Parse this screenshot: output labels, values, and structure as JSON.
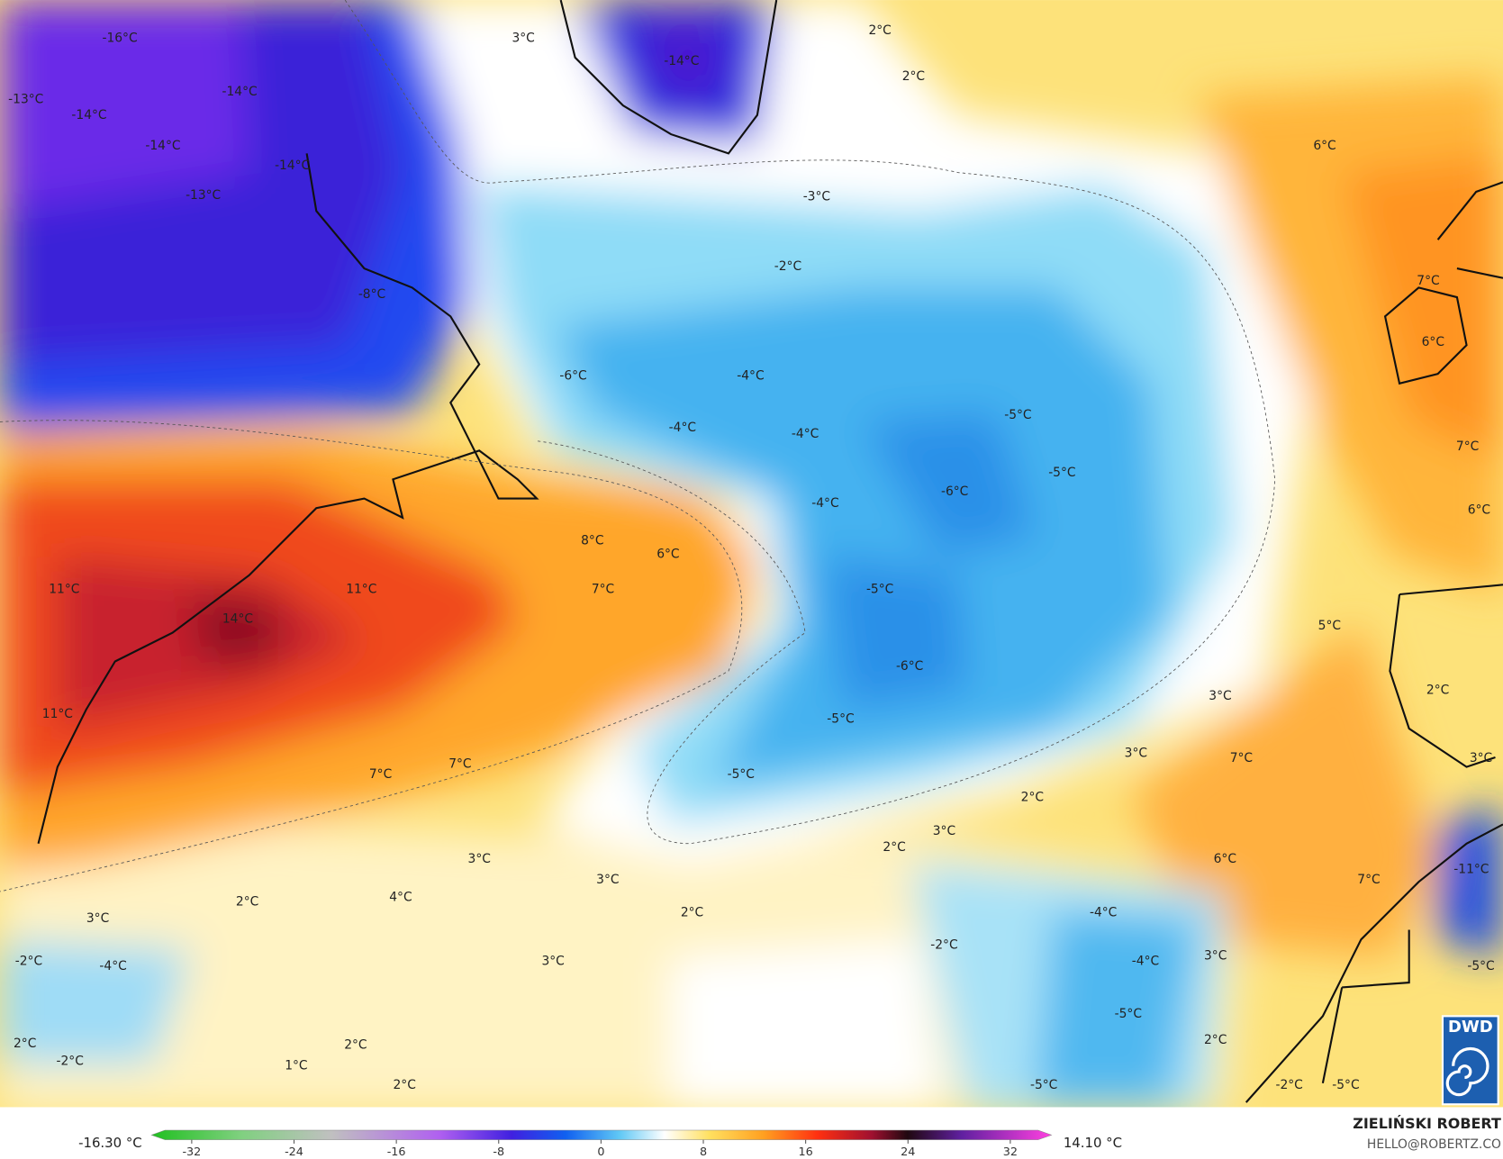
{
  "map": {
    "labels": [
      "-16°C",
      "3°C",
      "-14°C",
      "2°C",
      "2°C",
      "-13°C",
      "-14°C",
      "-14°C",
      "-14°C",
      "-14°C",
      "-13°C",
      "6°C",
      "-3°C",
      "-2°C",
      "-8°C",
      "7°C",
      "6°C",
      "-6°C",
      "-4°C",
      "-4°C",
      "-4°C",
      "-5°C",
      "-5°C",
      "7°C",
      "-4°C",
      "-6°C",
      "6°C",
      "8°C",
      "6°C",
      "11°C",
      "11°C",
      "7°C",
      "-5°C",
      "14°C",
      "5°C",
      "-6°C",
      "2°C",
      "3°C",
      "11°C",
      "-5°C",
      "7°C",
      "7°C",
      "3°C",
      "7°C",
      "3°C",
      "-5°C",
      "2°C",
      "3°C",
      "2°C",
      "3°C",
      "6°C",
      "3°C",
      "7°C",
      "-11°C",
      "4°C",
      "2°C",
      "2°C",
      "3°C",
      "-4°C",
      "-2°C",
      "-2°C",
      "-4°C",
      "3°C",
      "-4°C",
      "3°C",
      "-5°C",
      "-5°C",
      "2°C",
      "2°C",
      "2°C",
      "-2°C",
      "1°C",
      "2°C",
      "-5°C",
      "-2°C",
      "-5°C"
    ]
  },
  "colorbar": {
    "ticks": [
      -32,
      -24,
      -16,
      -8,
      0,
      8,
      16,
      24,
      32
    ],
    "min_label": "-16.30 °C",
    "max_label": "14.10 °C"
  },
  "credit": {
    "author": "ZIELIŃSKI ROBERT",
    "contact": "HELLO@ROBERTZ.CO"
  },
  "logo": "DWD"
}
